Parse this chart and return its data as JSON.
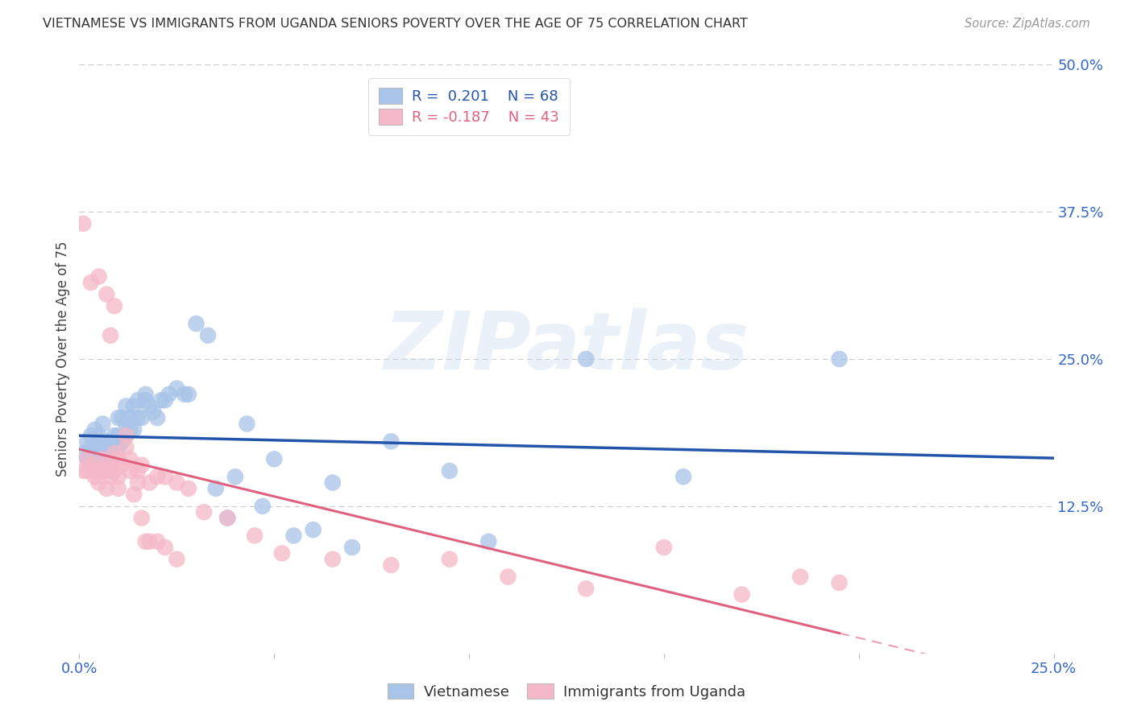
{
  "title": "VIETNAMESE VS IMMIGRANTS FROM UGANDA SENIORS POVERTY OVER THE AGE OF 75 CORRELATION CHART",
  "source": "Source: ZipAtlas.com",
  "ylabel": "Seniors Poverty Over the Age of 75",
  "x_min": 0.0,
  "x_max": 0.25,
  "y_min": 0.0,
  "y_max": 0.5,
  "y_tick_labels_right": [
    "12.5%",
    "25.0%",
    "37.5%",
    "50.0%"
  ],
  "y_tick_values_right": [
    0.125,
    0.25,
    0.375,
    0.5
  ],
  "blue_R": "0.201",
  "blue_N": "68",
  "pink_R": "-0.187",
  "pink_N": "43",
  "blue_color": "#a8c4e8",
  "pink_color": "#f5b8c8",
  "blue_line_color": "#2255aa",
  "pink_line_color": "#e06080",
  "watermark_text": "ZIPatlas",
  "blue_scatter_x": [
    0.001,
    0.002,
    0.002,
    0.003,
    0.003,
    0.003,
    0.004,
    0.004,
    0.004,
    0.005,
    0.005,
    0.005,
    0.005,
    0.006,
    0.006,
    0.006,
    0.007,
    0.007,
    0.007,
    0.008,
    0.008,
    0.008,
    0.009,
    0.009,
    0.01,
    0.01,
    0.01,
    0.011,
    0.011,
    0.012,
    0.012,
    0.012,
    0.013,
    0.013,
    0.014,
    0.014,
    0.015,
    0.015,
    0.016,
    0.017,
    0.017,
    0.018,
    0.019,
    0.02,
    0.021,
    0.022,
    0.023,
    0.025,
    0.027,
    0.028,
    0.03,
    0.033,
    0.035,
    0.038,
    0.04,
    0.043,
    0.047,
    0.05,
    0.055,
    0.06,
    0.065,
    0.07,
    0.08,
    0.095,
    0.105,
    0.13,
    0.155,
    0.195
  ],
  "blue_scatter_y": [
    0.17,
    0.165,
    0.18,
    0.16,
    0.175,
    0.185,
    0.165,
    0.175,
    0.19,
    0.175,
    0.17,
    0.185,
    0.155,
    0.165,
    0.18,
    0.195,
    0.17,
    0.175,
    0.155,
    0.165,
    0.18,
    0.175,
    0.175,
    0.185,
    0.175,
    0.185,
    0.2,
    0.18,
    0.2,
    0.185,
    0.195,
    0.21,
    0.19,
    0.2,
    0.19,
    0.21,
    0.2,
    0.215,
    0.2,
    0.215,
    0.22,
    0.21,
    0.205,
    0.2,
    0.215,
    0.215,
    0.22,
    0.225,
    0.22,
    0.22,
    0.28,
    0.27,
    0.14,
    0.115,
    0.15,
    0.195,
    0.125,
    0.165,
    0.1,
    0.105,
    0.145,
    0.09,
    0.18,
    0.155,
    0.095,
    0.25,
    0.15,
    0.25
  ],
  "pink_scatter_x": [
    0.001,
    0.002,
    0.002,
    0.003,
    0.003,
    0.004,
    0.004,
    0.005,
    0.005,
    0.006,
    0.006,
    0.007,
    0.007,
    0.008,
    0.008,
    0.009,
    0.009,
    0.01,
    0.01,
    0.011,
    0.012,
    0.013,
    0.014,
    0.015,
    0.016,
    0.018,
    0.02,
    0.022,
    0.025,
    0.028,
    0.032,
    0.038,
    0.045,
    0.052,
    0.065,
    0.08,
    0.095,
    0.11,
    0.13,
    0.15,
    0.17,
    0.185,
    0.195
  ],
  "pink_scatter_y": [
    0.155,
    0.155,
    0.165,
    0.155,
    0.16,
    0.15,
    0.155,
    0.155,
    0.145,
    0.155,
    0.165,
    0.16,
    0.14,
    0.155,
    0.15,
    0.17,
    0.155,
    0.15,
    0.165,
    0.16,
    0.175,
    0.155,
    0.135,
    0.155,
    0.16,
    0.145,
    0.15,
    0.15,
    0.145,
    0.14,
    0.12,
    0.115,
    0.1,
    0.085,
    0.08,
    0.075,
    0.08,
    0.065,
    0.055,
    0.09,
    0.05,
    0.065,
    0.06
  ],
  "pink_extra_x": [
    0.001,
    0.003,
    0.005,
    0.007,
    0.008,
    0.009,
    0.01,
    0.01,
    0.012,
    0.013,
    0.015,
    0.016,
    0.017,
    0.018,
    0.02,
    0.022,
    0.025
  ],
  "pink_extra_y": [
    0.365,
    0.315,
    0.32,
    0.305,
    0.27,
    0.295,
    0.165,
    0.14,
    0.185,
    0.165,
    0.145,
    0.115,
    0.095,
    0.095,
    0.095,
    0.09,
    0.08
  ]
}
